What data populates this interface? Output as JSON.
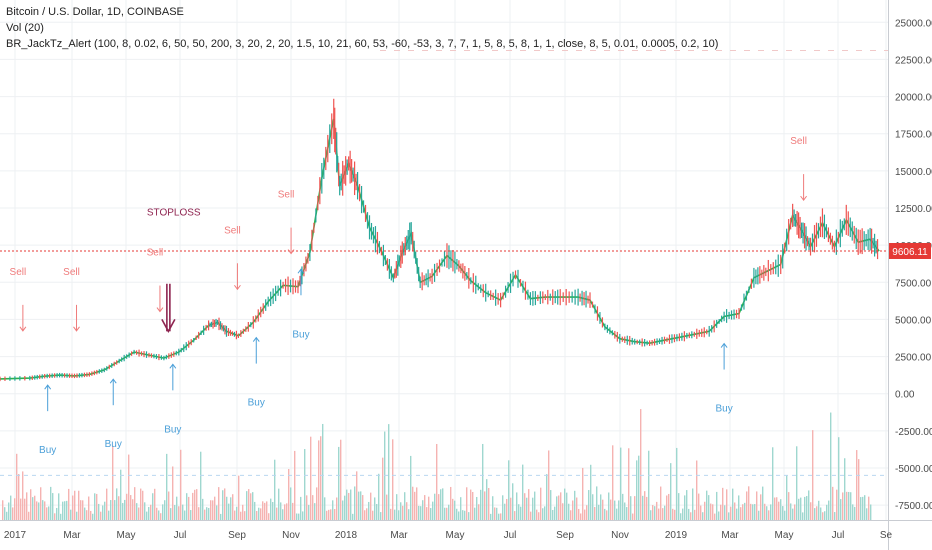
{
  "legend": {
    "symbol": "Bitcoin / U.S. Dollar, 1D, COINBASE",
    "volume": "Vol (20)",
    "indicator": "BR_JackTz_Alert (100, 8, 0.02, 6, 50, 50, 200, 3, 20, 2, 20, 1.5, 10, 21, 60, 53, -60, -53, 3, 7, 7, 1, 5, 8, 5, 8, 1, 1, close, 8, 5, 0.01, 0.0005, 0.2, 10)"
  },
  "price_label": "9606.11",
  "stop_loss_label": "STOPLOSS",
  "colors": {
    "up": "#26a69a",
    "down": "#ef5350",
    "buy": "#4a9fd8",
    "sell": "#ef7b7b",
    "price_line": "#e53935",
    "stop": "#8e2450",
    "signal_line": "#2bb24c"
  },
  "chart_data": {
    "type": "line",
    "title": "Bitcoin / U.S. Dollar, 1D, COINBASE",
    "xlabel": "",
    "ylabel": "",
    "ylim": [
      -8500,
      26500
    ],
    "grid": true,
    "x_ticks": [
      "2017",
      "Mar",
      "May",
      "Jul",
      "Sep",
      "Nov",
      "2018",
      "Mar",
      "May",
      "Jul",
      "Sep",
      "Nov",
      "2019",
      "Mar",
      "May",
      "Jul",
      "Se"
    ],
    "y_ticks": [
      "25000.00",
      "22500.00",
      "20000.00",
      "17500.00",
      "15000.00",
      "12500.00",
      "10000.00",
      "7500.00",
      "5000.00",
      "2500.00",
      "0.00",
      "-2500.00",
      "-5000.00",
      "-7500.00"
    ],
    "series": [
      {
        "values": [
          {
            "x": 0,
            "y": 1000
          },
          {
            "x": 1,
            "y": 1050
          },
          {
            "x": 1.5,
            "y": 1180
          },
          {
            "x": 2,
            "y": 1250
          },
          {
            "x": 2.5,
            "y": 1200
          },
          {
            "x": 3,
            "y": 1300
          },
          {
            "x": 3.5,
            "y": 1600
          },
          {
            "x": 4,
            "y": 2200
          },
          {
            "x": 4.5,
            "y": 2800
          },
          {
            "x": 5,
            "y": 2600
          },
          {
            "x": 5.5,
            "y": 2400
          },
          {
            "x": 6,
            "y": 2800
          },
          {
            "x": 6.5,
            "y": 3600
          },
          {
            "x": 7,
            "y": 4600
          },
          {
            "x": 7.3,
            "y": 4800
          },
          {
            "x": 7.6,
            "y": 4200
          },
          {
            "x": 8,
            "y": 3900
          },
          {
            "x": 8.5,
            "y": 4800
          },
          {
            "x": 9,
            "y": 6200
          },
          {
            "x": 9.5,
            "y": 7300
          },
          {
            "x": 10,
            "y": 7200
          },
          {
            "x": 10.4,
            "y": 9500
          },
          {
            "x": 10.8,
            "y": 14500
          },
          {
            "x": 11.2,
            "y": 18500
          },
          {
            "x": 11.4,
            "y": 14000
          },
          {
            "x": 11.7,
            "y": 15500
          },
          {
            "x": 12,
            "y": 14000
          },
          {
            "x": 12.4,
            "y": 11200
          },
          {
            "x": 12.8,
            "y": 9600
          },
          {
            "x": 13.2,
            "y": 7800
          },
          {
            "x": 13.5,
            "y": 9500
          },
          {
            "x": 13.8,
            "y": 10800
          },
          {
            "x": 14.1,
            "y": 7500
          },
          {
            "x": 14.5,
            "y": 7900
          },
          {
            "x": 15,
            "y": 9300
          },
          {
            "x": 15.4,
            "y": 8600
          },
          {
            "x": 15.8,
            "y": 7600
          },
          {
            "x": 16.3,
            "y": 6800
          },
          {
            "x": 16.8,
            "y": 6300
          },
          {
            "x": 17.3,
            "y": 8000
          },
          {
            "x": 17.8,
            "y": 6400
          },
          {
            "x": 18.3,
            "y": 6500
          },
          {
            "x": 18.8,
            "y": 6500
          },
          {
            "x": 19.4,
            "y": 6500
          },
          {
            "x": 19.8,
            "y": 6300
          },
          {
            "x": 20.3,
            "y": 4500
          },
          {
            "x": 20.8,
            "y": 3700
          },
          {
            "x": 21.3,
            "y": 3500
          },
          {
            "x": 21.8,
            "y": 3400
          },
          {
            "x": 22.3,
            "y": 3600
          },
          {
            "x": 22.8,
            "y": 3800
          },
          {
            "x": 23.3,
            "y": 4000
          },
          {
            "x": 23.8,
            "y": 4200
          },
          {
            "x": 24.3,
            "y": 5200
          },
          {
            "x": 24.8,
            "y": 5400
          },
          {
            "x": 25.3,
            "y": 7800
          },
          {
            "x": 25.7,
            "y": 8200
          },
          {
            "x": 26.2,
            "y": 8700
          },
          {
            "x": 26.6,
            "y": 12000
          },
          {
            "x": 26.9,
            "y": 11000
          },
          {
            "x": 27.2,
            "y": 9900
          },
          {
            "x": 27.6,
            "y": 11500
          },
          {
            "x": 28,
            "y": 9900
          },
          {
            "x": 28.4,
            "y": 11700
          },
          {
            "x": 28.8,
            "y": 10200
          },
          {
            "x": 29.2,
            "y": 10400
          },
          {
            "x": 29.5,
            "y": 9600
          }
        ]
      }
    ],
    "annotations": [
      {
        "text": "Sell",
        "x": 0.6,
        "y": 8000
      },
      {
        "text": "Sell",
        "x": 2.4,
        "y": 8000
      },
      {
        "text": "Sell",
        "x": 5.2,
        "y": 9300
      },
      {
        "text": "Sell",
        "x": 7.8,
        "y": 10800
      },
      {
        "text": "Sell",
        "x": 9.6,
        "y": 13200
      },
      {
        "text": "Sell",
        "x": 26.8,
        "y": 16800
      },
      {
        "text": "Buy",
        "x": 1.6,
        "y": -4000
      },
      {
        "text": "Buy",
        "x": 3.8,
        "y": -3600
      },
      {
        "text": "Buy",
        "x": 5.8,
        "y": -2600
      },
      {
        "text": "Buy",
        "x": 8.6,
        "y": -800
      },
      {
        "text": "Buy",
        "x": 10.1,
        "y": 3800
      },
      {
        "text": "Buy",
        "x": 24.3,
        "y": -1200
      }
    ]
  }
}
